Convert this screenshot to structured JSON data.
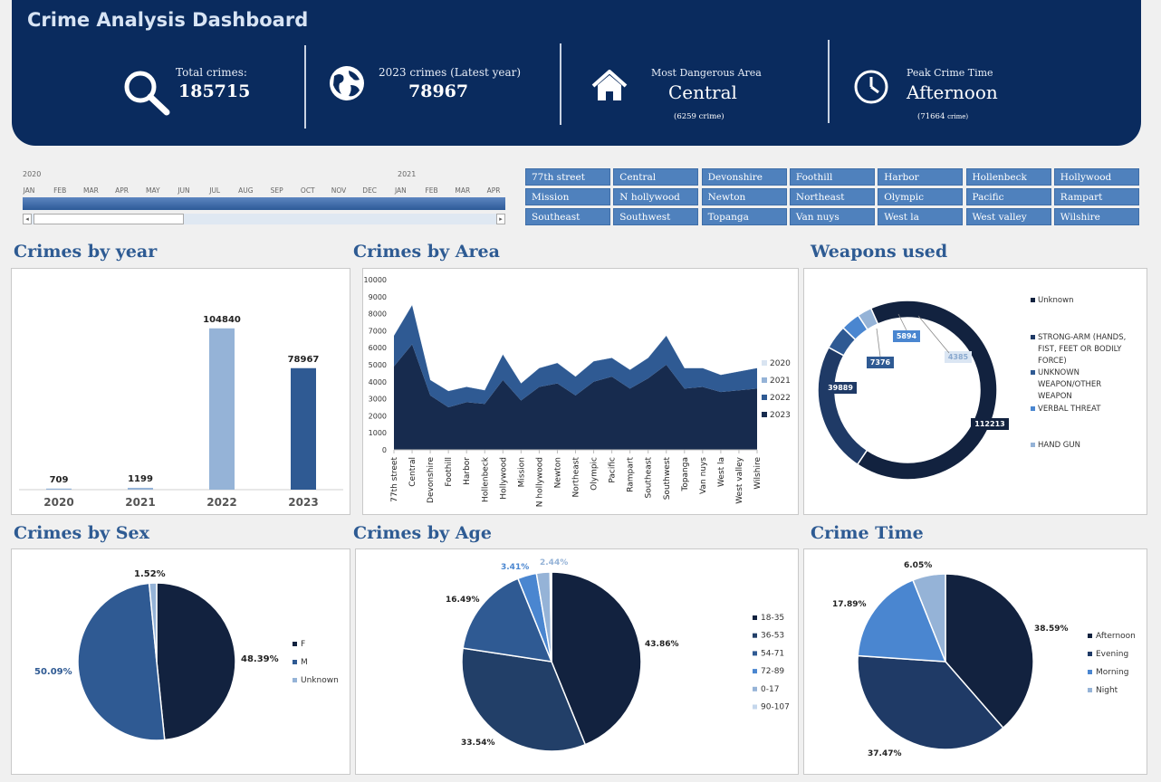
{
  "header": {
    "title": "Crime Analysis Dashboard",
    "kpis": [
      {
        "label": "Total crimes:",
        "value": "185715",
        "icon": "search-icon"
      },
      {
        "label": "2023 crimes (Latest year)",
        "value": "78967",
        "icon": "globe-icon"
      },
      {
        "label": "Most Dangerous Area",
        "value": "Central",
        "note": "(6259 crime)",
        "icon": "house-icon"
      },
      {
        "label": "Peak Crime Time",
        "value": "Afternoon",
        "note_num": "(71664",
        "note_unit": "crime)",
        "icon": "clock-icon"
      }
    ]
  },
  "timeline": {
    "years": [
      "2020",
      "2021"
    ],
    "months": [
      "JAN",
      "FEB",
      "MAR",
      "APR",
      "MAY",
      "JUN",
      "JUL",
      "AUG",
      "SEP",
      "OCT",
      "NOV",
      "DEC",
      "JAN",
      "FEB",
      "MAR",
      "APR"
    ]
  },
  "area_slicer": {
    "items": [
      "77th street",
      "Central",
      "Devonshire",
      "Foothill",
      "Harbor",
      "Hollenbeck",
      "Hollywood",
      "Mission",
      "N hollywood",
      "Newton",
      "Northeast",
      "Olympic",
      "Pacific",
      "Rampart",
      "Southeast",
      "Southwest",
      "Topanga",
      "Van nuys",
      "West la",
      "West valley",
      "Wilshire"
    ]
  },
  "sections": {
    "by_year": "Crimes by year",
    "by_area": "Crimes by Area",
    "weapons": "Weapons used",
    "by_sex": "Crimes by Sex",
    "by_age": "Crimes by Age",
    "crime_time": "Crime Time"
  },
  "colors": {
    "navy": "#0a2b5e",
    "dark": "#12223f",
    "mid": "#2f5a93",
    "light": "#95b3d7",
    "bright": "#4a86d0",
    "title": "#2e5b93"
  },
  "chart_data": [
    {
      "type": "bar",
      "title": "Crimes by year",
      "categories": [
        "2020",
        "2021",
        "2022",
        "2023"
      ],
      "values": [
        709,
        1199,
        104840,
        78967
      ],
      "ylim": [
        0,
        120000
      ],
      "colors": [
        "#95b3d7",
        "#95b3d7",
        "#95b3d7",
        "#2f5a93"
      ]
    },
    {
      "type": "area",
      "title": "Crimes by Area",
      "categories": [
        "77th street",
        "Central",
        "Devonshire",
        "Foothill",
        "Harbor",
        "Hollenbeck",
        "Hollywood",
        "Mission",
        "N hollywood",
        "Newton",
        "Northeast",
        "Olympic",
        "Pacific",
        "Rampart",
        "Southeast",
        "Southwest",
        "Topanga",
        "Van nuys",
        "West la",
        "West valley",
        "Wilshire"
      ],
      "yticks": [
        0,
        1000,
        2000,
        3000,
        4000,
        5000,
        6000,
        7000,
        8000,
        9000,
        10000
      ],
      "ylim": [
        0,
        10000
      ],
      "series": [
        {
          "name": "2023",
          "values": [
            4900,
            6200,
            3200,
            2500,
            2800,
            2700,
            4100,
            2900,
            3700,
            3900,
            3200,
            4000,
            4300,
            3600,
            4200,
            5000,
            3600,
            3700,
            3400,
            3500,
            3600
          ]
        },
        {
          "name": "2022",
          "values": [
            1800,
            2300,
            900,
            950,
            900,
            800,
            1500,
            1000,
            1100,
            1200,
            1100,
            1200,
            1100,
            1100,
            1200,
            1700,
            1200,
            1100,
            1000,
            1100,
            1200
          ]
        },
        {
          "name": "2021",
          "values": [
            20,
            20,
            10,
            10,
            10,
            10,
            15,
            10,
            10,
            12,
            10,
            12,
            10,
            10,
            12,
            15,
            10,
            10,
            10,
            10,
            10
          ]
        },
        {
          "name": "2020",
          "values": [
            10,
            10,
            5,
            5,
            5,
            5,
            8,
            5,
            5,
            6,
            5,
            6,
            5,
            5,
            6,
            8,
            5,
            5,
            5,
            5,
            5
          ]
        }
      ],
      "legend": "right"
    },
    {
      "type": "pie",
      "title": "Weapons used",
      "labels": [
        "Unknown",
        "STRONG-ARM (HANDS, FIST, FEET OR BODILY FORCE)",
        "UNKNOWN WEAPON/OTHER WEAPON",
        "VERBAL THREAT",
        "HAND GUN"
      ],
      "values": [
        112213,
        39889,
        7376,
        5894,
        4385
      ],
      "colors": [
        "#12223f",
        "#1f3a66",
        "#2f5a93",
        "#4a86d0",
        "#95b3d7"
      ],
      "donut": true,
      "legend": "right"
    },
    {
      "type": "pie",
      "title": "Crimes by Sex",
      "labels": [
        "F",
        "M",
        "Unknown"
      ],
      "values": [
        48.39,
        50.09,
        1.52
      ],
      "value_labels": [
        "48.39%",
        "50.09%",
        "1.52%"
      ],
      "colors": [
        "#12223f",
        "#2f5a93",
        "#95b3d7"
      ],
      "legend": "right"
    },
    {
      "type": "pie",
      "title": "Crimes by Age",
      "labels": [
        "18-35",
        "36-53",
        "54-71",
        "72-89",
        "0-17",
        "90-107"
      ],
      "values": [
        43.86,
        33.54,
        16.49,
        3.41,
        2.44,
        0.26
      ],
      "value_labels": [
        "43.86%",
        "33.54%",
        "16.49%",
        "3.41%",
        "2.44%",
        ""
      ],
      "colors": [
        "#12223f",
        "#223f68",
        "#2f5a93",
        "#4a86d0",
        "#95b3d7",
        "#c5d7ec"
      ],
      "legend": "right"
    },
    {
      "type": "pie",
      "title": "Crime Time",
      "labels": [
        "Afternoon",
        "Evening",
        "Morning",
        "Night"
      ],
      "values": [
        38.59,
        37.47,
        17.89,
        6.05
      ],
      "value_labels": [
        "38.59%",
        "37.47%",
        "17.89%",
        "6.05%"
      ],
      "colors": [
        "#12223f",
        "#1f3a66",
        "#4a86d0",
        "#95b3d7"
      ],
      "legend": "right"
    }
  ]
}
